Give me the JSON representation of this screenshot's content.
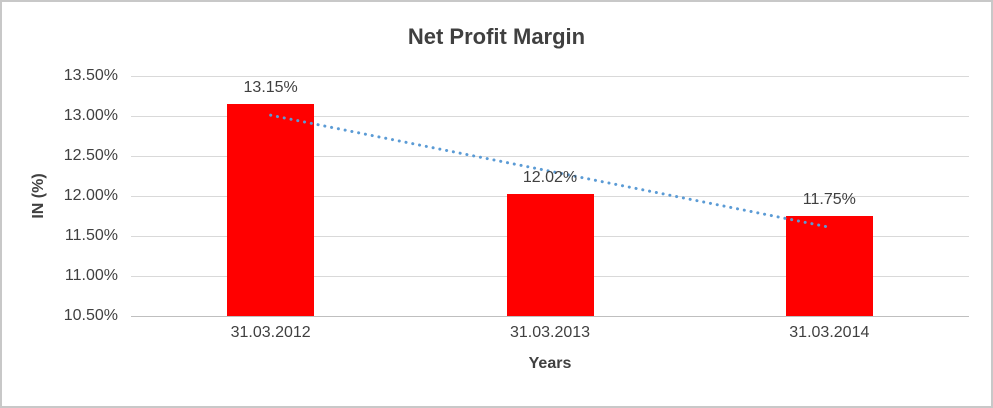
{
  "chart_data": {
    "type": "bar",
    "title": "Net Profit Margin",
    "xlabel": "Years",
    "ylabel": "IN (%)",
    "categories": [
      "31.03.2012",
      "31.03.2013",
      "31.03.2014"
    ],
    "values": [
      13.15,
      12.02,
      11.75
    ],
    "data_labels": [
      "13.15%",
      "12.02%",
      "11.75%"
    ],
    "y_tick_labels": [
      "13.50%",
      "13.00%",
      "12.50%",
      "12.00%",
      "11.50%",
      "11.00%",
      "10.50%"
    ],
    "ylim": [
      10.5,
      13.5
    ],
    "y_tick_step": 0.5,
    "grid": true,
    "legend": "none",
    "bar_color": "#ff0000",
    "gridline_color": "#d9d9d9",
    "text_color": "#404040",
    "trendline": {
      "type": "linear",
      "style": "dotted",
      "color": "#5b9bd5",
      "start_value": 13.01,
      "end_value": 11.61
    }
  }
}
